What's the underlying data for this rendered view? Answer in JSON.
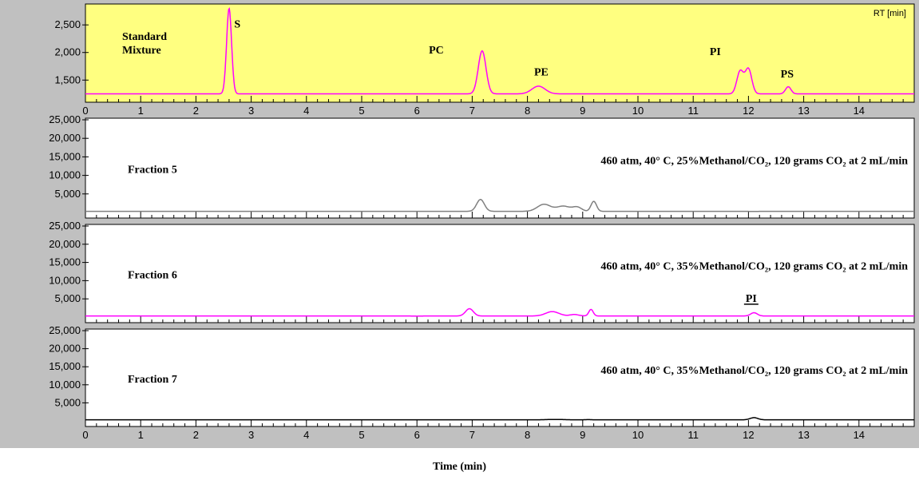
{
  "chart_data": {
    "type": "line",
    "xlabel": "Time (min)",
    "x_ticks": [
      "0",
      "1",
      "2",
      "3",
      "4",
      "5",
      "6",
      "7",
      "8",
      "9",
      "10",
      "11",
      "12",
      "13",
      "14"
    ],
    "xlim": [
      0,
      15
    ],
    "panels": [
      {
        "id": "standard",
        "background": "#ffff80",
        "line_color": "#ff00ff",
        "sample_label": [
          "Standard",
          "Mixture"
        ],
        "corner_label": "RT [min]",
        "ylim": [
          1200,
          2850
        ],
        "y_ticks": [
          {
            "v": 1500,
            "t": "1,500"
          },
          {
            "v": 2000,
            "t": "2,000"
          },
          {
            "v": 2500,
            "t": "2,500"
          }
        ],
        "baseline": 1250,
        "peaks": [
          {
            "x": 2.6,
            "h": 2800,
            "w": 0.045
          },
          {
            "x": 7.18,
            "h": 2030,
            "w": 0.07
          },
          {
            "x": 8.2,
            "h": 1390,
            "w": 0.12
          },
          {
            "x": 11.85,
            "h": 1660,
            "w": 0.06
          },
          {
            "x": 12.0,
            "h": 1700,
            "w": 0.06
          },
          {
            "x": 12.72,
            "h": 1380,
            "w": 0.05
          }
        ],
        "peak_labels": [
          {
            "x": 2.75,
            "y": 2450,
            "t": "S"
          },
          {
            "x": 6.35,
            "y": 1980,
            "t": "PC"
          },
          {
            "x": 8.25,
            "y": 1580,
            "t": "PE"
          },
          {
            "x": 11.4,
            "y": 1950,
            "t": "PI"
          },
          {
            "x": 12.7,
            "y": 1550,
            "t": "PS"
          }
        ]
      },
      {
        "id": "fraction5",
        "background": "#ffffff",
        "line_color": "#808080",
        "sample_label": [
          "Fraction 5"
        ],
        "condition": "460 atm, 40° C, 25%Methanol/CO₂, 120 grams CO₂ at 2 mL/min",
        "ylim": [
          0,
          25000
        ],
        "y_ticks": [
          {
            "v": 5000,
            "t": "5,000"
          },
          {
            "v": 10000,
            "t": "10,000"
          },
          {
            "v": 15000,
            "t": "15,000"
          },
          {
            "v": 20000,
            "t": "20,000"
          },
          {
            "v": 25000,
            "t": "25,000"
          }
        ],
        "baseline": 300,
        "peaks": [
          {
            "x": 7.15,
            "h": 3500,
            "w": 0.07
          },
          {
            "x": 8.3,
            "h": 2200,
            "w": 0.12
          },
          {
            "x": 8.65,
            "h": 1700,
            "w": 0.12
          },
          {
            "x": 8.9,
            "h": 1400,
            "w": 0.08
          },
          {
            "x": 9.2,
            "h": 3000,
            "w": 0.05
          },
          {
            "x": 5.2,
            "h": 300,
            "w": 0.05
          },
          {
            "x": 6.0,
            "h": 300,
            "w": 0.05
          },
          {
            "x": 12.1,
            "h": 250,
            "w": 0.05
          }
        ]
      },
      {
        "id": "fraction6",
        "background": "#ffffff",
        "line_color": "#ff00ff",
        "sample_label": [
          "Fraction 6"
        ],
        "condition": "460 atm, 40° C, 35%Methanol/CO₂, 120 grams CO₂ at 2 mL/min",
        "ylim": [
          0,
          25000
        ],
        "y_ticks": [
          {
            "v": 5000,
            "t": "5,000"
          },
          {
            "v": 10000,
            "t": "10,000"
          },
          {
            "v": 15000,
            "t": "15,000"
          },
          {
            "v": 20000,
            "t": "20,000"
          },
          {
            "v": 25000,
            "t": "25,000"
          }
        ],
        "baseline": 300,
        "peaks": [
          {
            "x": 6.95,
            "h": 2300,
            "w": 0.07
          },
          {
            "x": 8.45,
            "h": 1500,
            "w": 0.12
          },
          {
            "x": 8.85,
            "h": 700,
            "w": 0.08
          },
          {
            "x": 9.15,
            "h": 2100,
            "w": 0.04
          },
          {
            "x": 12.1,
            "h": 1200,
            "w": 0.06
          },
          {
            "x": 1.7,
            "h": 300,
            "w": 0.05
          },
          {
            "x": 6.0,
            "h": 250,
            "w": 0.05
          }
        ],
        "peak_labels": [
          {
            "x": 12.05,
            "y": 4200,
            "t": "PI",
            "underline": true
          }
        ]
      },
      {
        "id": "fraction7",
        "background": "#ffffff",
        "line_color": "#000000",
        "sample_label": [
          "Fraction 7"
        ],
        "condition": "460 atm, 40° C, 35%Methanol/CO₂, 120 grams CO₂ at 2 mL/min",
        "ylim": [
          0,
          25000
        ],
        "y_ticks": [
          {
            "v": 5000,
            "t": "5,000"
          },
          {
            "v": 10000,
            "t": "10,000"
          },
          {
            "v": 15000,
            "t": "15,000"
          },
          {
            "v": 20000,
            "t": "20,000"
          },
          {
            "v": 25000,
            "t": "25,000"
          }
        ],
        "baseline": 300,
        "peaks": [
          {
            "x": 7.05,
            "h": 300,
            "w": 0.03
          },
          {
            "x": 8.5,
            "h": 400,
            "w": 0.15
          },
          {
            "x": 9.1,
            "h": 350,
            "w": 0.06
          },
          {
            "x": 12.1,
            "h": 900,
            "w": 0.07
          }
        ]
      }
    ]
  }
}
